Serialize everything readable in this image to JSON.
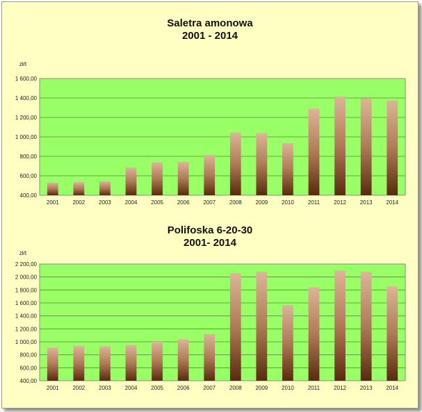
{
  "chart_data": [
    {
      "type": "bar",
      "title": "Saletra amonowa",
      "subtitle": "2001 - 2014",
      "unit_label": "zł/t",
      "categories": [
        "2001",
        "2002",
        "2003",
        "2004",
        "2005",
        "2006",
        "2007",
        "2008",
        "2009",
        "2010",
        "2011",
        "2012",
        "2013",
        "2014"
      ],
      "values": [
        530,
        535,
        545,
        685,
        740,
        745,
        815,
        1045,
        1040,
        935,
        1290,
        1415,
        1395,
        1375
      ],
      "ylim": [
        400,
        1600
      ],
      "y_ticks": [
        "400,00",
        "600,00",
        "800,00",
        "1 000,00",
        "1 200,00",
        "1 400,00",
        "1 600,00"
      ],
      "grid": true,
      "colors": {
        "plot_bg": "#99ff66",
        "bar_top": "#ddb598",
        "bar_bottom": "#5a2a0e"
      }
    },
    {
      "type": "bar",
      "title": "Polifoska 6-20-30",
      "subtitle": "2001- 2014",
      "unit_label": "zł/t",
      "categories": [
        "2001",
        "2002",
        "2003",
        "2004",
        "2005",
        "2006",
        "2007",
        "2008",
        "2009",
        "2010",
        "2011",
        "2012",
        "2013",
        "2014"
      ],
      "values": [
        910,
        935,
        930,
        950,
        1000,
        1040,
        1120,
        2060,
        2080,
        1565,
        1840,
        2100,
        2080,
        1855
      ],
      "ylim": [
        400,
        2200
      ],
      "y_ticks": [
        "400,00",
        "600,00",
        "800,00",
        "1 000,00",
        "1 200,00",
        "1 400,00",
        "1 600,00",
        "1 800,00",
        "2 000,00",
        "2 200,00"
      ],
      "grid": true,
      "colors": {
        "plot_bg": "#99ff66",
        "bar_top": "#ddb598",
        "bar_bottom": "#5a2a0e"
      }
    }
  ]
}
